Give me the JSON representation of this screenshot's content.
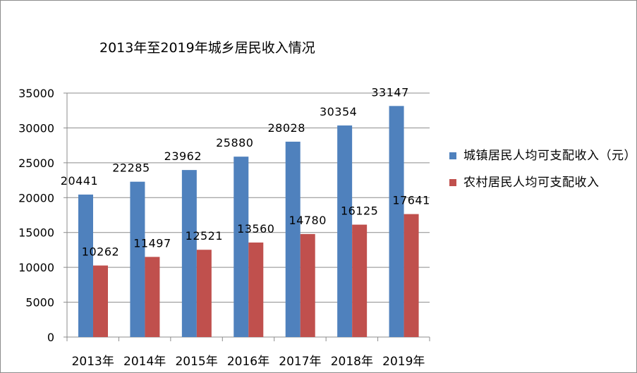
{
  "chart_data": {
    "type": "bar",
    "title": "2013年至2019年城乡居民收入情况",
    "categories": [
      "2013年",
      "2014年",
      "2015年",
      "2016年",
      "2017年",
      "2018年",
      "2019年"
    ],
    "series": [
      {
        "name": "城镇居民人均可支配收入（元）",
        "color": "#4f81bd",
        "values": [
          20441,
          22285,
          23962,
          25880,
          28028,
          30354,
          33147
        ]
      },
      {
        "name": "农村居民人均可支配收入",
        "color": "#c0504d",
        "values": [
          10262,
          11497,
          12521,
          13560,
          14780,
          16125,
          17641
        ]
      }
    ],
    "ylim": [
      0,
      35000
    ],
    "yticks": [
      0,
      5000,
      10000,
      15000,
      20000,
      25000,
      30000,
      35000
    ],
    "grid": true,
    "legend_position": "right",
    "data_labels": true
  }
}
